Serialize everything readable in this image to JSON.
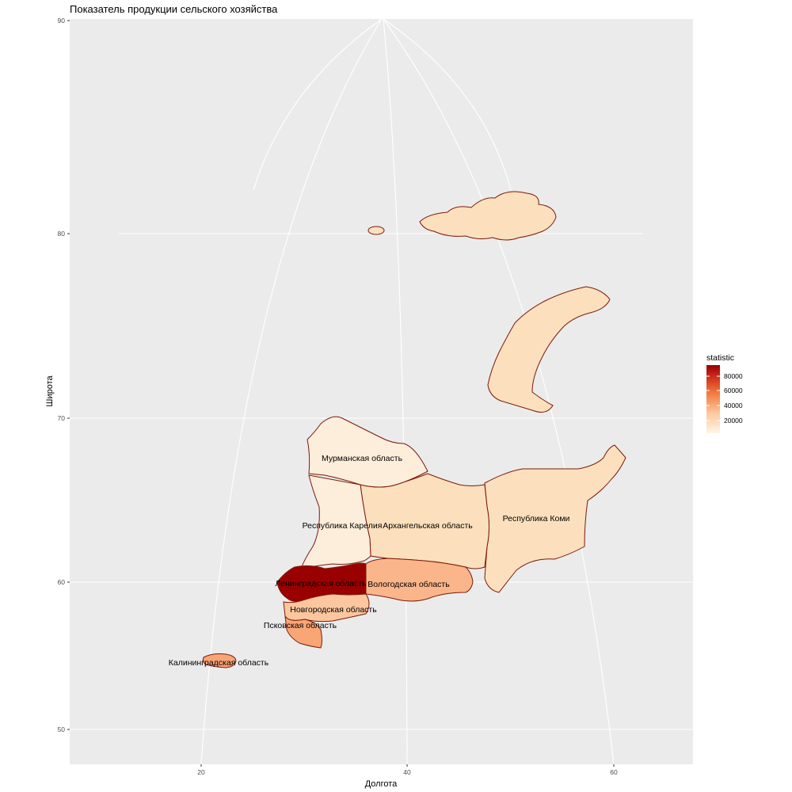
{
  "chart_data": {
    "type": "choropleth-map",
    "title": "Показатель продукции сельского хозяйства",
    "xlabel": "Долгота",
    "ylabel": "Широта",
    "x_ticks": [
      "20",
      "40",
      "60"
    ],
    "y_ticks": [
      "50",
      "60",
      "70",
      "80",
      "90"
    ],
    "legend": {
      "title": "statistic",
      "ticks": [
        "80000",
        "60000",
        "40000",
        "20000"
      ],
      "color_low": "#fff5e6",
      "color_high": "#990000",
      "placement": "right"
    },
    "regions": [
      {
        "name": "Мурманская область",
        "label": "Мурманская область",
        "color": "#fdeedb"
      },
      {
        "name": "Республика Карелия",
        "label": "Республика Карелия",
        "color": "#fdeedb"
      },
      {
        "name": "Архангельская область",
        "label": "Архангельская область",
        "color": "#fce0bd"
      },
      {
        "name": "Республика Коми",
        "label": "Республика Коми",
        "color": "#fce0bd"
      },
      {
        "name": "Ленинградская область",
        "label": "Ленинградская область",
        "color": "#990000"
      },
      {
        "name": "Вологодская область",
        "label": "Вологодская область",
        "color": "#fbb58a"
      },
      {
        "name": "Новгородская область",
        "label": "Новгородская область",
        "color": "#fcc69f"
      },
      {
        "name": "Псковская область",
        "label": "Псковская область",
        "color": "#f9a576"
      },
      {
        "name": "Калининградская область",
        "label": "Калининградская область",
        "color": "#f9a576"
      }
    ]
  },
  "colors": {
    "panel_background": "#ebebeb",
    "grid": "#ffffff",
    "border": "#7b1a0a"
  }
}
